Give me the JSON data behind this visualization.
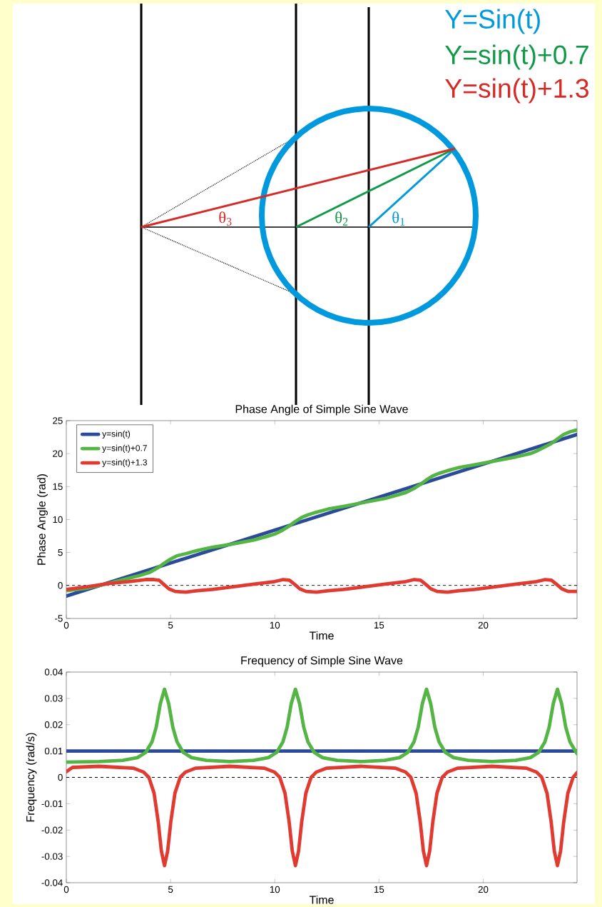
{
  "chart_data": [
    {
      "type": "other",
      "annotations": [
        "Y=Sin(t)",
        "Y=sin(t)+0.7",
        "Y=sin(t)+1.3",
        "θ$_{3}$",
        "θ$_{2}$",
        "θ$_{1}$"
      ]
    },
    {
      "type": "line",
      "title": "Phase Angle of Simple Sine Wave",
      "xlabel": "Time",
      "ylabel": "Phase Angle (rad)",
      "xlim": [
        0,
        24.5
      ],
      "ylim": [
        -5,
        25
      ],
      "xticks": [
        0,
        5,
        10,
        15,
        20
      ],
      "yticks": [
        -5,
        0,
        5,
        10,
        15,
        20,
        25
      ],
      "legend": "top left",
      "ref_lines": [
        {
          "axis": "y",
          "value": 0,
          "line_style": "dashed",
          "color": "#000000"
        }
      ],
      "series": [
        {
          "name": "y=sin(t)",
          "color": "#2b4a9a",
          "x": [
            0,
            12,
            24.5
          ],
          "values": [
            -1.6,
            10.4,
            22.9
          ]
        },
        {
          "name": "y=sin(t)+0.7",
          "color": "#54b544",
          "x": [
            0,
            1,
            2,
            3,
            3.5,
            4,
            4.4,
            4.7,
            5.0,
            5.3,
            5.7,
            6.28,
            7.0,
            8.0,
            9.0,
            9.68,
            10.0,
            10.38,
            10.68,
            10.98,
            11.28,
            11.58,
            11.98,
            12.57,
            13.29,
            14.29,
            15.29,
            15.97,
            16.29,
            16.67,
            16.97,
            17.27,
            17.57,
            17.87,
            18.27,
            18.85,
            19.57,
            20.57,
            21.57,
            22.25,
            22.57,
            22.95,
            23.25,
            23.55,
            23.85,
            24.15,
            24.5
          ],
          "values": [
            -0.8,
            -0.4,
            0.3,
            1.1,
            1.5,
            2.0,
            2.7,
            3.4,
            4.0,
            4.5,
            4.8,
            5.3,
            5.8,
            6.3,
            6.9,
            7.5,
            7.8,
            8.4,
            9.0,
            9.7,
            10.3,
            10.7,
            11.1,
            11.6,
            12.0,
            12.6,
            13.2,
            13.8,
            14.1,
            14.7,
            15.3,
            16.0,
            16.6,
            17.0,
            17.4,
            17.9,
            18.3,
            18.9,
            19.5,
            20.0,
            20.4,
            21.0,
            21.5,
            22.2,
            22.9,
            23.3,
            23.6
          ]
        },
        {
          "name": "y=sin(t)+1.3",
          "color": "#e03a31",
          "x": [
            0,
            1,
            2,
            3,
            3.8,
            4.2,
            4.45,
            4.7,
            4.92,
            5.22,
            5.72,
            6.28,
            7.0,
            8.0,
            9.0,
            10.0,
            10.4,
            10.7,
            10.98,
            11.2,
            11.5,
            12.0,
            12.57,
            13.29,
            14.29,
            15.29,
            16.29,
            16.69,
            16.99,
            17.27,
            17.49,
            17.79,
            18.29,
            18.85,
            19.57,
            20.57,
            21.57,
            22.57,
            22.97,
            23.27,
            23.55,
            23.77,
            24.07,
            24.5
          ],
          "values": [
            -0.6,
            -0.2,
            0.3,
            0.6,
            0.9,
            0.9,
            0.8,
            0.1,
            -0.5,
            -0.9,
            -1.0,
            -0.8,
            -0.6,
            -0.2,
            0.2,
            0.6,
            0.9,
            0.8,
            0.1,
            -0.5,
            -0.9,
            -1.0,
            -0.8,
            -0.6,
            -0.2,
            0.2,
            0.6,
            0.9,
            0.8,
            0.1,
            -0.5,
            -0.9,
            -1.0,
            -0.8,
            -0.6,
            -0.2,
            0.2,
            0.6,
            0.9,
            0.8,
            0.1,
            -0.5,
            -0.9,
            -0.9
          ]
        }
      ]
    },
    {
      "type": "line",
      "title": "Frequency of Simple Sine Wave",
      "xlabel": "Time",
      "ylabel": "Frequency (rad/s)",
      "xlim": [
        0,
        24.5
      ],
      "ylim": [
        -0.04,
        0.04
      ],
      "xticks": [
        0,
        5,
        10,
        15,
        20
      ],
      "yticks": [
        -0.04,
        -0.03,
        -0.02,
        -0.01,
        0,
        0.01,
        0.02,
        0.03,
        0.04
      ],
      "ref_lines": [
        {
          "axis": "y",
          "value": 0,
          "line_style": "dashed",
          "color": "#000000"
        }
      ],
      "series": [
        {
          "color": "#2b4a9a",
          "x": [
            0,
            12,
            24.5
          ],
          "values": [
            0.01,
            0.01,
            0.01
          ]
        },
        {
          "color": "#54b544",
          "x": [
            0,
            1.57,
            2.71,
            3.41,
            3.81,
            4.11,
            4.31,
            4.51,
            4.71,
            4.91,
            5.11,
            5.31,
            5.61,
            6.01,
            6.71,
            7.85,
            8.99,
            9.69,
            10.09,
            10.39,
            10.59,
            10.79,
            10.99,
            11.19,
            11.39,
            11.59,
            11.89,
            12.29,
            12.99,
            14.14,
            15.28,
            15.98,
            16.38,
            16.68,
            16.88,
            17.08,
            17.28,
            17.48,
            17.68,
            17.88,
            18.18,
            18.58,
            19.28,
            20.42,
            21.56,
            22.26,
            22.66,
            22.96,
            23.16,
            23.36,
            23.56,
            23.76,
            23.96,
            24.16,
            24.46,
            24.5
          ],
          "values": [
            0.0058,
            0.006,
            0.0065,
            0.0075,
            0.0095,
            0.0135,
            0.019,
            0.028,
            0.0335,
            0.028,
            0.019,
            0.0135,
            0.0095,
            0.0075,
            0.0065,
            0.006,
            0.0065,
            0.0075,
            0.0095,
            0.0135,
            0.019,
            0.028,
            0.0335,
            0.028,
            0.019,
            0.0135,
            0.0095,
            0.0075,
            0.0065,
            0.006,
            0.0065,
            0.0075,
            0.0095,
            0.0135,
            0.019,
            0.028,
            0.0335,
            0.028,
            0.019,
            0.0135,
            0.0095,
            0.0075,
            0.0065,
            0.006,
            0.0065,
            0.0075,
            0.0095,
            0.0135,
            0.019,
            0.028,
            0.0335,
            0.028,
            0.019,
            0.0135,
            0.0095,
            0.009
          ]
        },
        {
          "color": "#e03a31",
          "x": [
            0,
            0.3,
            1.57,
            3.21,
            3.71,
            3.96,
            4.21,
            4.41,
            4.56,
            4.71,
            4.86,
            5.01,
            5.21,
            5.46,
            5.71,
            6.21,
            7.85,
            9.49,
            9.99,
            10.24,
            10.49,
            10.69,
            10.84,
            10.99,
            11.14,
            11.29,
            11.49,
            11.74,
            11.99,
            12.49,
            14.14,
            15.78,
            16.28,
            16.53,
            16.78,
            16.98,
            17.13,
            17.28,
            17.43,
            17.58,
            17.78,
            18.03,
            18.28,
            18.78,
            20.42,
            22.06,
            22.56,
            22.81,
            23.06,
            23.26,
            23.41,
            23.56,
            23.71,
            23.86,
            24.06,
            24.31,
            24.5
          ],
          "values": [
            0.0022,
            0.0038,
            0.0042,
            0.0035,
            0.002,
            0,
            -0.006,
            -0.017,
            -0.028,
            -0.0335,
            -0.028,
            -0.017,
            -0.006,
            0,
            0.002,
            0.0035,
            0.0042,
            0.0035,
            0.002,
            0,
            -0.006,
            -0.017,
            -0.028,
            -0.0335,
            -0.028,
            -0.017,
            -0.006,
            0,
            0.002,
            0.0035,
            0.0042,
            0.0035,
            0.002,
            0,
            -0.006,
            -0.017,
            -0.028,
            -0.0335,
            -0.028,
            -0.017,
            -0.006,
            0,
            0.002,
            0.0035,
            0.0042,
            0.0035,
            0.002,
            0,
            -0.006,
            -0.017,
            -0.028,
            -0.0335,
            -0.028,
            -0.017,
            -0.006,
            0,
            0.0018
          ]
        }
      ]
    }
  ]
}
